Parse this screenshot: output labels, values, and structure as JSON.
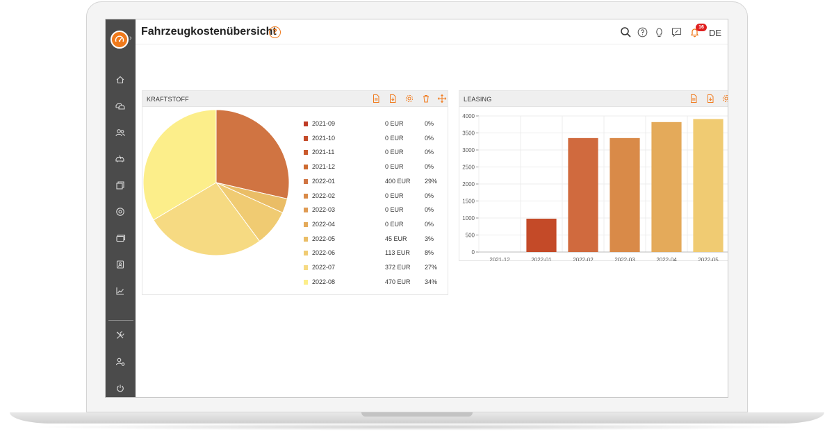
{
  "header": {
    "title": "Fahrzeugkostenübersicht",
    "help_glyph": "?",
    "notification_count": "16",
    "language": "DE"
  },
  "colors": {
    "accent": "#f07a1c",
    "sidebar": "#4b4b4b",
    "badge": "#e02020"
  },
  "sidebar": {
    "logo_icon": "speedometer-icon",
    "items": [
      {
        "icon": "home-icon"
      },
      {
        "icon": "cars-icon"
      },
      {
        "icon": "users-icon"
      },
      {
        "icon": "car-damage-icon"
      },
      {
        "icon": "documents-icon"
      },
      {
        "icon": "tires-icon"
      },
      {
        "icon": "cards-icon"
      },
      {
        "icon": "contacts-icon"
      },
      {
        "icon": "chart-icon"
      }
    ],
    "bottom_items": [
      {
        "icon": "tools-icon"
      },
      {
        "icon": "user-settings-icon"
      },
      {
        "icon": "power-icon"
      }
    ]
  },
  "toolbar_icons": [
    "search-icon",
    "help-icon",
    "lightbulb-icon",
    "feedback-icon",
    "bell-icon"
  ],
  "kraftstoff": {
    "title": "KRAFTSTOFF",
    "header_icons": [
      "export-pdf-icon",
      "export-file-icon",
      "settings-icon",
      "delete-icon",
      "move-icon"
    ],
    "legend": [
      {
        "label": "2021-09",
        "amount": "0 EUR",
        "percent": "0%",
        "color": "#bf3b25"
      },
      {
        "label": "2021-10",
        "amount": "0 EUR",
        "percent": "0%",
        "color": "#c44a28"
      },
      {
        "label": "2021-11",
        "amount": "0 EUR",
        "percent": "0%",
        "color": "#c9592c"
      },
      {
        "label": "2021-12",
        "amount": "0 EUR",
        "percent": "0%",
        "color": "#cd6a30"
      },
      {
        "label": "2022-01",
        "amount": "400 EUR",
        "percent": "29%",
        "color": "#d07442"
      },
      {
        "label": "2022-02",
        "amount": "0 EUR",
        "percent": "0%",
        "color": "#d98a48"
      },
      {
        "label": "2022-03",
        "amount": "0 EUR",
        "percent": "0%",
        "color": "#df9a52"
      },
      {
        "label": "2022-04",
        "amount": "0 EUR",
        "percent": "0%",
        "color": "#e4aa5a"
      },
      {
        "label": "2022-05",
        "amount": "45 EUR",
        "percent": "3%",
        "color": "#eabd66"
      },
      {
        "label": "2022-06",
        "amount": "113 EUR",
        "percent": "8%",
        "color": "#f0cb72"
      },
      {
        "label": "2022-07",
        "amount": "372 EUR",
        "percent": "27%",
        "color": "#f6da82"
      },
      {
        "label": "2022-08",
        "amount": "470 EUR",
        "percent": "34%",
        "color": "#fcee8a"
      }
    ]
  },
  "leasing": {
    "title": "LEASING",
    "header_icons": [
      "export-pdf-icon",
      "export-file-icon",
      "settings-icon"
    ]
  },
  "chart_data": [
    {
      "type": "pie",
      "title": "KRAFTSTOFF",
      "categories": [
        "2021-09",
        "2021-10",
        "2021-11",
        "2021-12",
        "2022-01",
        "2022-02",
        "2022-03",
        "2022-04",
        "2022-05",
        "2022-06",
        "2022-07",
        "2022-08"
      ],
      "values": [
        0,
        0,
        0,
        0,
        400,
        0,
        0,
        0,
        45,
        113,
        372,
        470
      ],
      "unit": "EUR",
      "colors": [
        "#bf3b25",
        "#c44a28",
        "#c9592c",
        "#cd6a30",
        "#d07442",
        "#d98a48",
        "#df9a52",
        "#e4aa5a",
        "#eabd66",
        "#f0cb72",
        "#f6da82",
        "#fcee8a"
      ],
      "legend": "right"
    },
    {
      "type": "bar",
      "title": "LEASING",
      "categories": [
        "2021-12",
        "2022-01",
        "2022-02",
        "2022-03",
        "2022-04",
        "2022-05"
      ],
      "values": [
        0,
        980,
        3350,
        3350,
        3820,
        3910
      ],
      "colors": [
        "#c44a28",
        "#c44a28",
        "#d06a3e",
        "#d98a48",
        "#e4aa5a",
        "#f0cb72"
      ],
      "ylim": [
        0,
        4000
      ],
      "yticks": [
        "0",
        "500",
        "1000",
        "1500",
        "2000",
        "2500",
        "3000",
        "3500",
        "4000"
      ],
      "grid": true
    }
  ]
}
